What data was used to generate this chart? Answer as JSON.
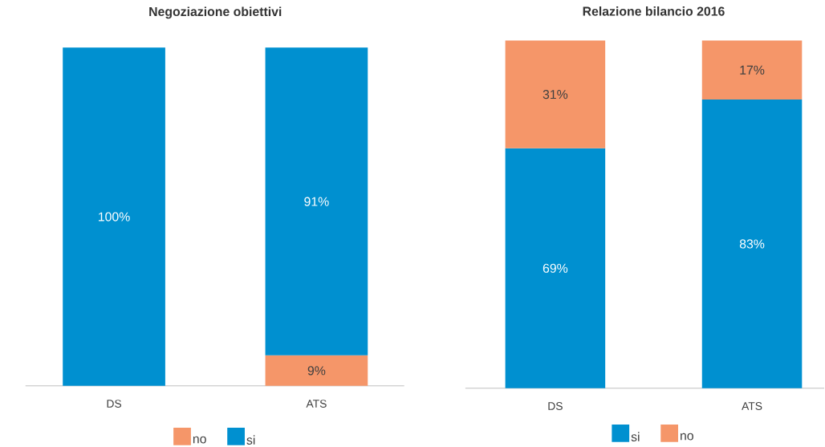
{
  "chart_data": [
    {
      "type": "bar",
      "title": "Negoziazione obiettivi",
      "categories": [
        "DS",
        "ATS"
      ],
      "stacked": true,
      "ylim": [
        0,
        100
      ],
      "tick_labels": "x",
      "legend": "bottom",
      "series": [
        {
          "name": "no",
          "color": "#f59669",
          "values": [
            null,
            9
          ],
          "value_labels": [
            null,
            "9%"
          ]
        },
        {
          "name": "si",
          "color": "#0090d0",
          "values": [
            100,
            91
          ],
          "value_labels": [
            "100%",
            "91%"
          ]
        }
      ]
    },
    {
      "type": "bar",
      "title": "Relazione bilancio 2016",
      "categories": [
        "DS",
        "ATS"
      ],
      "stacked": true,
      "ylim": [
        0,
        100
      ],
      "tick_labels": "x",
      "legend": "bottom",
      "series": [
        {
          "name": "si",
          "color": "#0090d0",
          "values": [
            69,
            83
          ],
          "value_labels": [
            "69%",
            "83%"
          ]
        },
        {
          "name": "no",
          "color": "#f59669",
          "values": [
            31,
            17
          ],
          "value_labels": [
            "31%",
            "17%"
          ]
        }
      ]
    }
  ]
}
